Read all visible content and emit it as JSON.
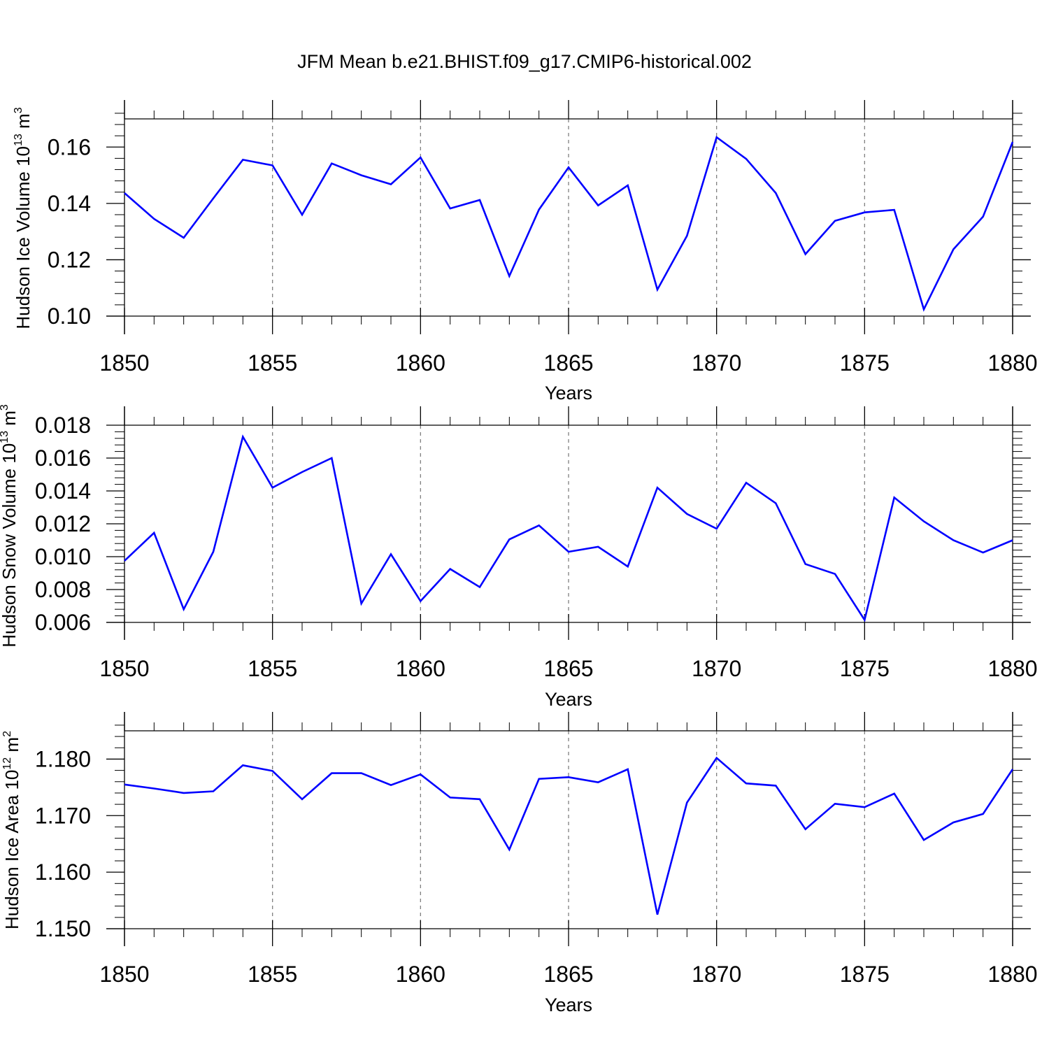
{
  "title": "JFM Mean b.e21.BHIST.f09_g17.CMIP6-historical.002",
  "line_color": "#0000ff",
  "grid_color": "#808080",
  "chart_data": [
    {
      "type": "line",
      "ylabel": "Hudson Ice Volume 10",
      "ylabel_exp": "13",
      "ylabel_unit": " m",
      "ylabel_unit_exp": "3",
      "xlabel": "Years",
      "xlim": [
        1850,
        1880
      ],
      "ylim": [
        0.1,
        0.17
      ],
      "yticks": [
        0.1,
        0.12,
        0.14,
        0.16
      ],
      "ytick_labels": [
        "0.10",
        "0.12",
        "0.14",
        "0.16"
      ],
      "xticks": [
        1850,
        1855,
        1860,
        1865,
        1870,
        1875,
        1880
      ],
      "xtick_labels": [
        "1850",
        "1855",
        "1860",
        "1865",
        "1870",
        "1875",
        "1880"
      ],
      "x": [
        1850,
        1851,
        1852,
        1853,
        1854,
        1855,
        1856,
        1857,
        1858,
        1859,
        1860,
        1861,
        1862,
        1863,
        1864,
        1865,
        1866,
        1867,
        1868,
        1869,
        1870,
        1871,
        1872,
        1873,
        1874,
        1875,
        1876,
        1877,
        1878,
        1879,
        1880
      ],
      "values": [
        0.1437,
        0.1345,
        0.1278,
        0.1418,
        0.1555,
        0.1535,
        0.136,
        0.1542,
        0.15,
        0.1468,
        0.1563,
        0.1382,
        0.1412,
        0.1142,
        0.1378,
        0.1528,
        0.1393,
        0.1464,
        0.1094,
        0.1285,
        0.1635,
        0.1558,
        0.1437,
        0.122,
        0.1338,
        0.1368,
        0.1377,
        0.1024,
        0.1237,
        0.1353,
        0.1618
      ]
    },
    {
      "type": "line",
      "ylabel": "Hudson Snow Volume 10",
      "ylabel_exp": "13",
      "ylabel_unit": " m",
      "ylabel_unit_exp": "3",
      "xlabel": "Years",
      "xlim": [
        1850,
        1880
      ],
      "ylim": [
        0.006,
        0.018
      ],
      "yticks": [
        0.006,
        0.008,
        0.01,
        0.012,
        0.014,
        0.016,
        0.018
      ],
      "ytick_labels": [
        "0.006",
        "0.008",
        "0.010",
        "0.012",
        "0.014",
        "0.016",
        "0.018"
      ],
      "xticks": [
        1850,
        1855,
        1860,
        1865,
        1870,
        1875,
        1880
      ],
      "xtick_labels": [
        "1850",
        "1855",
        "1860",
        "1865",
        "1870",
        "1875",
        "1880"
      ],
      "x": [
        1850,
        1851,
        1852,
        1853,
        1854,
        1855,
        1856,
        1857,
        1858,
        1859,
        1860,
        1861,
        1862,
        1863,
        1864,
        1865,
        1866,
        1867,
        1868,
        1869,
        1870,
        1871,
        1872,
        1873,
        1874,
        1875,
        1876,
        1877,
        1878,
        1879,
        1880
      ],
      "values": [
        0.00975,
        0.01145,
        0.0068,
        0.0103,
        0.0173,
        0.0142,
        0.01515,
        0.016,
        0.00715,
        0.01015,
        0.0073,
        0.00925,
        0.00815,
        0.01105,
        0.0119,
        0.0103,
        0.0106,
        0.0094,
        0.0142,
        0.0126,
        0.0117,
        0.0145,
        0.01325,
        0.00955,
        0.00895,
        0.00615,
        0.0136,
        0.01215,
        0.011,
        0.01025,
        0.011
      ]
    },
    {
      "type": "line",
      "ylabel": "Hudson Ice Area 10",
      "ylabel_exp": "12",
      "ylabel_unit": " m",
      "ylabel_unit_exp": "2",
      "xlabel": "Years",
      "xlim": [
        1850,
        1880
      ],
      "ylim": [
        1.15,
        1.185
      ],
      "yticks": [
        1.15,
        1.16,
        1.17,
        1.18
      ],
      "ytick_labels": [
        "1.150",
        "1.160",
        "1.170",
        "1.180"
      ],
      "xticks": [
        1850,
        1855,
        1860,
        1865,
        1870,
        1875,
        1880
      ],
      "xtick_labels": [
        "1850",
        "1855",
        "1860",
        "1865",
        "1870",
        "1875",
        "1880"
      ],
      "x": [
        1850,
        1851,
        1852,
        1853,
        1854,
        1855,
        1856,
        1857,
        1858,
        1859,
        1860,
        1861,
        1862,
        1863,
        1864,
        1865,
        1866,
        1867,
        1868,
        1869,
        1870,
        1871,
        1872,
        1873,
        1874,
        1875,
        1876,
        1877,
        1878,
        1879,
        1880
      ],
      "values": [
        1.1755,
        1.1748,
        1.174,
        1.1743,
        1.1789,
        1.1779,
        1.1729,
        1.1775,
        1.1775,
        1.1754,
        1.1773,
        1.1732,
        1.1729,
        1.164,
        1.1765,
        1.1768,
        1.1759,
        1.1782,
        1.1525,
        1.1723,
        1.1802,
        1.1757,
        1.1753,
        1.1676,
        1.1721,
        1.1715,
        1.1739,
        1.1657,
        1.1688,
        1.1703,
        1.1782
      ]
    }
  ]
}
